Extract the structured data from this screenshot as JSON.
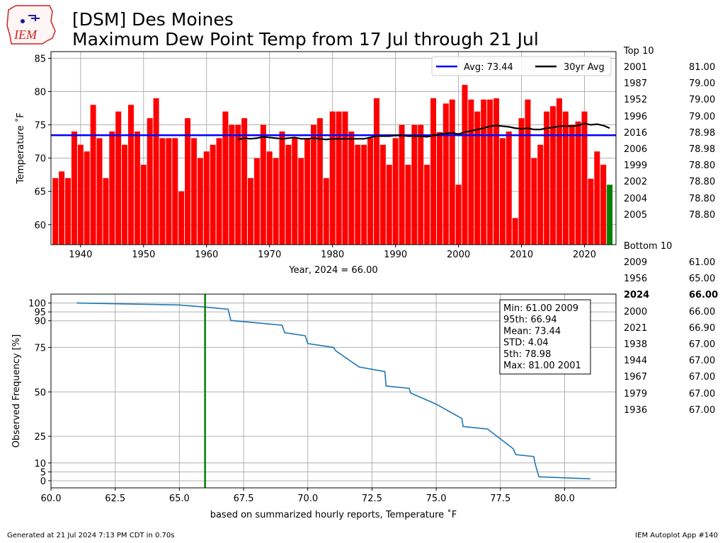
{
  "header": {
    "title_line1": "[DSM] Des Moines",
    "title_line2": "Maximum Dew Point Temp from 17 Jul through 21 Jul",
    "logo_text": "IEM"
  },
  "footer": {
    "generated": "Generated at 21 Jul 2024 7:13 PM CDT in 0.70s",
    "app": "IEM Autoplot App #140"
  },
  "colors": {
    "bar": "#ff0000",
    "current_bar": "#008000",
    "avg_line": "#0000ff",
    "avg30_line": "#000000",
    "cdf_line": "#1f77b4",
    "marker_line": "#008000",
    "grid": "#b0b0b0"
  },
  "rankings": {
    "top_label": "Top 10",
    "top": [
      {
        "year": "2001",
        "value": "81.00"
      },
      {
        "year": "1987",
        "value": "79.00"
      },
      {
        "year": "1952",
        "value": "79.00"
      },
      {
        "year": "1996",
        "value": "79.00"
      },
      {
        "year": "2016",
        "value": "78.98"
      },
      {
        "year": "2006",
        "value": "78.98"
      },
      {
        "year": "1999",
        "value": "78.80"
      },
      {
        "year": "2002",
        "value": "78.80"
      },
      {
        "year": "2004",
        "value": "78.80"
      },
      {
        "year": "2005",
        "value": "78.80"
      }
    ],
    "bottom_label": "Bottom 10",
    "bottom": [
      {
        "year": "2009",
        "value": "61.00"
      },
      {
        "year": "1956",
        "value": "65.00"
      },
      {
        "year": "2024",
        "value": "66.00",
        "bold": true
      },
      {
        "year": "2000",
        "value": "66.00"
      },
      {
        "year": "2021",
        "value": "66.90"
      },
      {
        "year": "1938",
        "value": "67.00"
      },
      {
        "year": "1944",
        "value": "67.00"
      },
      {
        "year": "1967",
        "value": "67.00"
      },
      {
        "year": "1979",
        "value": "67.00"
      },
      {
        "year": "1936",
        "value": "67.00"
      }
    ]
  },
  "chart_data": [
    {
      "type": "bar",
      "xlabel": "Year, 2024 = 66.00",
      "ylabel": "Temperature $^\\circ$F",
      "ylim": [
        57,
        86
      ],
      "xlim": [
        1935.3,
        2025
      ],
      "xticks": [
        1940,
        1950,
        1960,
        1970,
        1980,
        1990,
        2000,
        2010,
        2020
      ],
      "yticks": [
        60,
        65,
        70,
        75,
        80,
        85
      ],
      "grid": true,
      "legend_position": "top-right",
      "legend": [
        {
          "label": "Avg: 73.44",
          "color": "#0000ff"
        },
        {
          "label": "30yr Avg",
          "color": "#000000"
        }
      ],
      "average": 73.44,
      "years": [
        1936,
        1937,
        1938,
        1939,
        1940,
        1941,
        1942,
        1943,
        1944,
        1945,
        1946,
        1947,
        1948,
        1949,
        1950,
        1951,
        1952,
        1953,
        1954,
        1955,
        1956,
        1957,
        1958,
        1959,
        1960,
        1961,
        1962,
        1963,
        1964,
        1965,
        1966,
        1967,
        1968,
        1969,
        1970,
        1971,
        1972,
        1973,
        1974,
        1975,
        1976,
        1977,
        1978,
        1979,
        1980,
        1981,
        1982,
        1983,
        1984,
        1985,
        1986,
        1987,
        1988,
        1989,
        1990,
        1991,
        1992,
        1993,
        1994,
        1995,
        1996,
        1997,
        1998,
        1999,
        2000,
        2001,
        2002,
        2003,
        2004,
        2005,
        2006,
        2007,
        2008,
        2009,
        2010,
        2011,
        2012,
        2013,
        2014,
        2015,
        2016,
        2017,
        2018,
        2019,
        2020,
        2021,
        2022,
        2023,
        2024
      ],
      "values": [
        67,
        68,
        67,
        74,
        72,
        71,
        78,
        73,
        67,
        74,
        77,
        72,
        78,
        74,
        69,
        76,
        79,
        73,
        73,
        73,
        65,
        76,
        73,
        70,
        71,
        72,
        73,
        77,
        75,
        75,
        76,
        67,
        70,
        75,
        71,
        70,
        74,
        72,
        73,
        70,
        73,
        75,
        76,
        67,
        77,
        77,
        77,
        74,
        72,
        72,
        73,
        79,
        72,
        69,
        73,
        75,
        69,
        75,
        75,
        69,
        79,
        73.9,
        78.2,
        78.8,
        66,
        81,
        78.8,
        77,
        78.8,
        78.8,
        78.98,
        73,
        74,
        61,
        76,
        78.8,
        70,
        72,
        77,
        77.8,
        78.98,
        77,
        75,
        75.5,
        77,
        66.9,
        71,
        69,
        66
      ],
      "avg30": {
        "years": [
          1965,
          1966,
          1967,
          1968,
          1969,
          1970,
          1971,
          1972,
          1973,
          1974,
          1975,
          1976,
          1977,
          1978,
          1979,
          1980,
          1981,
          1982,
          1983,
          1984,
          1985,
          1986,
          1987,
          1988,
          1989,
          1990,
          1991,
          1992,
          1993,
          1994,
          1995,
          1996,
          1997,
          1998,
          1999,
          2000,
          2001,
          2002,
          2003,
          2004,
          2005,
          2006,
          2007,
          2008,
          2009,
          2010,
          2011,
          2012,
          2013,
          2014,
          2015,
          2016,
          2017,
          2018,
          2019,
          2020,
          2021,
          2022,
          2023,
          2024
        ],
        "values": [
          72.8,
          73.0,
          72.9,
          73.0,
          73.2,
          73.1,
          73.0,
          72.9,
          73.0,
          73.1,
          72.9,
          72.9,
          73.0,
          72.9,
          72.8,
          72.9,
          72.9,
          72.9,
          72.9,
          72.9,
          72.9,
          73.1,
          73.3,
          73.3,
          73.3,
          73.4,
          73.4,
          73.3,
          73.3,
          73.3,
          73.2,
          73.4,
          73.6,
          73.7,
          73.8,
          73.6,
          73.9,
          74.1,
          74.3,
          74.5,
          74.8,
          74.9,
          74.8,
          74.7,
          74.5,
          74.4,
          74.5,
          74.3,
          74.3,
          74.5,
          74.6,
          74.8,
          74.8,
          74.8,
          74.9,
          75.2,
          75.0,
          75.1,
          74.9,
          74.5
        ]
      }
    },
    {
      "type": "line",
      "xlabel": "based on summarized hourly reports, Temperature $^\\circ$F",
      "ylabel": "Observed Frequency [%]",
      "xlim": [
        60,
        82
      ],
      "ylim": [
        -4,
        105
      ],
      "xticks": [
        60.0,
        62.5,
        65.0,
        67.5,
        70.0,
        72.5,
        75.0,
        77.5,
        80.0
      ],
      "xtick_labels": [
        "60.0",
        "62.5",
        "65.0",
        "67.5",
        "70.0",
        "72.5",
        "75.0",
        "77.5",
        "80.0"
      ],
      "yticks": [
        0,
        5,
        10,
        25,
        50,
        75,
        90,
        95,
        100
      ],
      "grid": true,
      "marker_value": 66.0,
      "x": [
        61.0,
        65.0,
        66.0,
        66.9,
        67.0,
        69.0,
        69.1,
        69.9,
        70.0,
        71.0,
        71.1,
        72.0,
        73.0,
        73.05,
        73.95,
        74.0,
        75.0,
        76.0,
        76.05,
        77.0,
        78.0,
        78.1,
        78.8,
        78.85,
        79.0,
        81.0
      ],
      "y": [
        100,
        98.9,
        97.7,
        96.5,
        90.2,
        87.5,
        83.3,
        81.6,
        77.2,
        75.0,
        73.0,
        64.0,
        61.4,
        53.3,
        52.0,
        49.4,
        43.1,
        35.0,
        30.5,
        29.1,
        18.0,
        14.7,
        13.6,
        9.7,
        2.2,
        1.1
      ],
      "stats_box": {
        "lines": [
          "Min: 61.00 2009",
          "95th: 66.94",
          "Mean: 73.44",
          "STD: 4.04",
          "5th: 78.98",
          "Max: 81.00 2001"
        ]
      }
    }
  ]
}
